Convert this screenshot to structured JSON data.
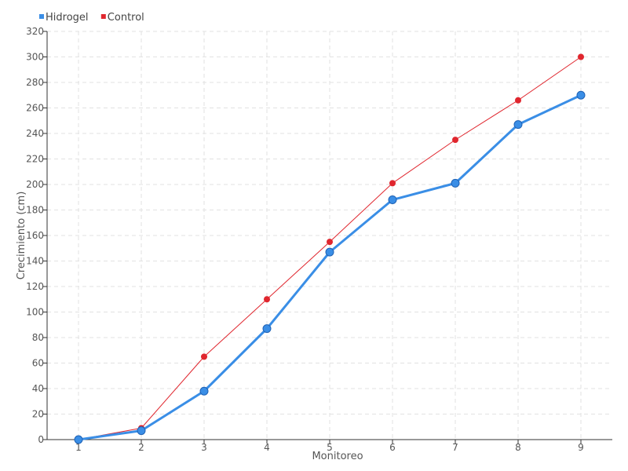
{
  "chart_data": {
    "type": "line",
    "categories": [
      "1",
      "2",
      "3",
      "4",
      "5",
      "6",
      "7",
      "8",
      "9"
    ],
    "series": [
      {
        "name": "Hidrogel",
        "color": "#3a8ee6",
        "values": [
          0,
          7,
          38,
          87,
          147,
          188,
          201,
          247,
          270
        ]
      },
      {
        "name": "Control",
        "color": "#e0262e",
        "values": [
          0,
          9,
          65,
          110,
          155,
          201,
          235,
          266,
          300
        ]
      }
    ],
    "xlabel": "Monitoreo",
    "ylabel": "Crecimiento (cm)",
    "ylim": [
      0,
      320
    ],
    "yticks": [
      0,
      20,
      40,
      60,
      80,
      100,
      120,
      140,
      160,
      180,
      200,
      220,
      240,
      260,
      280,
      300,
      320
    ],
    "grid": true,
    "legend_position": "top-left"
  }
}
